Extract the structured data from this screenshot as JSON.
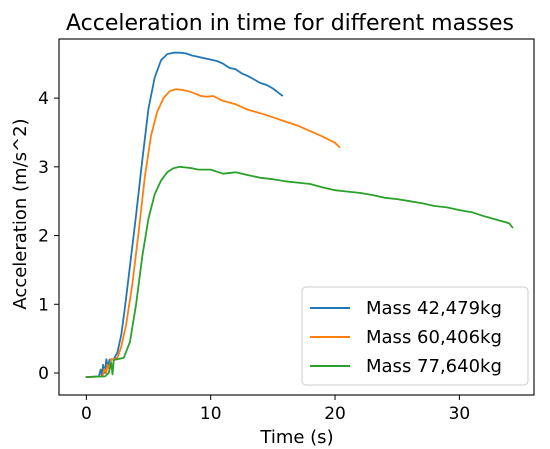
{
  "chart_data": {
    "type": "line",
    "title": "Acceleration in time for different masses",
    "xlabel": "Time (s)",
    "ylabel": "Acceleration (m/s^2)",
    "xlim": [
      -2.2,
      36.0
    ],
    "ylim": [
      -0.32,
      4.86
    ],
    "xticks": [
      0,
      10,
      20,
      30
    ],
    "yticks": [
      0,
      1,
      2,
      3,
      4
    ],
    "xtick_labels": [
      "0",
      "10",
      "20",
      "30"
    ],
    "ytick_labels": [
      "0",
      "1",
      "2",
      "3",
      "4"
    ],
    "grid": false,
    "legend_position": "lower-right",
    "series": [
      {
        "name": "Mass 42,479kg",
        "color": "#1f77b4",
        "x": [
          -0.05,
          1.0,
          1.15,
          1.25,
          1.35,
          1.5,
          1.6,
          1.75,
          1.85,
          2.0,
          2.2,
          2.5,
          2.8,
          3.1,
          3.5,
          4.0,
          4.5,
          5.0,
          5.5,
          6.0,
          6.5,
          7.0,
          7.5,
          8.0,
          8.5,
          9.0,
          9.5,
          10.0,
          10.5,
          11.0,
          11.5,
          12.0,
          12.5,
          13.0,
          13.5,
          14.0,
          14.5,
          15.0,
          15.5,
          15.8
        ],
        "y": [
          -0.06,
          -0.05,
          0.05,
          -0.04,
          0.12,
          0.0,
          0.2,
          0.08,
          0.19,
          0.2,
          0.2,
          0.3,
          0.55,
          0.95,
          1.55,
          2.3,
          3.1,
          3.85,
          4.3,
          4.55,
          4.64,
          4.66,
          4.66,
          4.65,
          4.62,
          4.6,
          4.58,
          4.56,
          4.54,
          4.5,
          4.44,
          4.42,
          4.36,
          4.32,
          4.27,
          4.22,
          4.19,
          4.14,
          4.07,
          4.03
        ]
      },
      {
        "name": "Mass 60,406kg",
        "color": "#ff7f0e",
        "x": [
          -0.05,
          1.3,
          1.45,
          1.6,
          1.7,
          1.85,
          2.0,
          2.2,
          2.5,
          2.8,
          3.2,
          3.7,
          4.2,
          4.7,
          5.2,
          5.7,
          6.2,
          6.7,
          7.2,
          7.7,
          8.2,
          8.7,
          9.2,
          9.7,
          10.2,
          11.0,
          12.0,
          13.0,
          14.0,
          15.0,
          16.0,
          17.0,
          18.0,
          19.0,
          20.0,
          20.4
        ],
        "y": [
          -0.06,
          -0.05,
          0.06,
          0.0,
          0.12,
          0.05,
          0.2,
          0.2,
          0.22,
          0.38,
          0.7,
          1.3,
          2.05,
          2.85,
          3.45,
          3.8,
          4.0,
          4.1,
          4.13,
          4.12,
          4.1,
          4.07,
          4.03,
          4.02,
          4.03,
          3.96,
          3.91,
          3.83,
          3.78,
          3.72,
          3.66,
          3.6,
          3.52,
          3.44,
          3.35,
          3.28
        ]
      },
      {
        "name": "Mass 77,640kg",
        "color": "#2ca02c",
        "x": [
          -0.05,
          1.5,
          1.8,
          2.0,
          2.1,
          2.2,
          2.35,
          2.5,
          3.0,
          3.5,
          4.0,
          4.5,
          5.0,
          5.5,
          6.0,
          6.5,
          7.0,
          7.5,
          8.0,
          8.5,
          9.0,
          10.0,
          11.0,
          12.0,
          13.0,
          14.0,
          15.0,
          16.0,
          17.0,
          18.0,
          19.0,
          20.0,
          21.0,
          22.0,
          23.0,
          24.0,
          25.0,
          26.0,
          27.0,
          28.0,
          29.0,
          30.0,
          31.0,
          32.0,
          33.0,
          34.0,
          34.3
        ],
        "y": [
          -0.06,
          -0.05,
          0.0,
          0.15,
          -0.02,
          0.18,
          0.2,
          0.2,
          0.22,
          0.45,
          1.0,
          1.7,
          2.25,
          2.6,
          2.8,
          2.92,
          2.98,
          3.0,
          2.99,
          2.98,
          2.96,
          2.96,
          2.9,
          2.92,
          2.88,
          2.84,
          2.82,
          2.79,
          2.77,
          2.75,
          2.7,
          2.66,
          2.64,
          2.62,
          2.59,
          2.55,
          2.53,
          2.5,
          2.47,
          2.43,
          2.41,
          2.37,
          2.34,
          2.28,
          2.23,
          2.18,
          2.11
        ]
      }
    ]
  }
}
